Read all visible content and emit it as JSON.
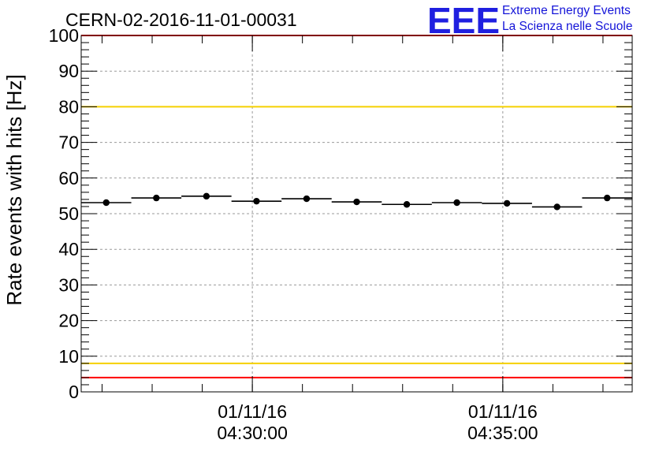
{
  "chart_data": {
    "type": "scatter",
    "title": "CERN-02-2016-11-01-00031",
    "ylabel": "Rate events with hits [Hz]",
    "ylim": [
      0,
      100
    ],
    "yticks": [
      0,
      10,
      20,
      30,
      40,
      50,
      60,
      70,
      80,
      90,
      100
    ],
    "grid": true,
    "xlim": [
      "2016-11-01 04:26:35",
      "2016-11-01 04:37:35"
    ],
    "xticks": [
      {
        "time": "2016-11-01 04:30:00",
        "line1": "01/11/16",
        "line2": "04:30:00"
      },
      {
        "time": "2016-11-01 04:35:00",
        "line1": "01/11/16",
        "line2": "04:35:00"
      }
    ],
    "series": [
      {
        "bin_width_seconds": 60,
        "x": [
          "04:27:05",
          "04:28:05",
          "04:29:05",
          "04:30:05",
          "04:31:05",
          "04:32:05",
          "04:33:05",
          "04:34:05",
          "04:35:05",
          "04:36:05",
          "04:37:05"
        ],
        "y": [
          53.1,
          54.4,
          54.9,
          53.5,
          54.2,
          53.3,
          52.6,
          53.1,
          52.9,
          51.9,
          54.4
        ]
      }
    ],
    "reference_lines": [
      {
        "y": 100,
        "color": "#ff0000"
      },
      {
        "y": 80,
        "color": "#f5d000"
      },
      {
        "y": 8,
        "color": "#f5d000"
      },
      {
        "y": 4,
        "color": "#ff0000"
      }
    ]
  },
  "logo": {
    "mark": "EEE",
    "line1": "Extreme Energy Events",
    "line2": "La Scienza nelle Scuole",
    "color": "#1f1fe0"
  }
}
